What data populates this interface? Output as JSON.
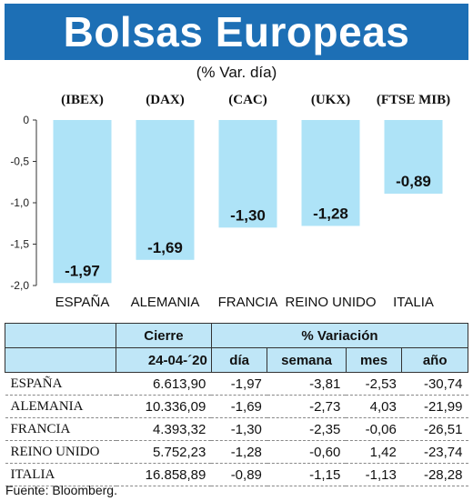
{
  "header": {
    "title": "Bolsas Europeas",
    "subtitle": "(% Var. día)"
  },
  "chart_data": {
    "type": "bar",
    "indices": [
      "(IBEX)",
      "(DAX)",
      "(CAC)",
      "(UKX)",
      "(FTSE MIB)"
    ],
    "categories": [
      "ESPAÑA",
      "ALEMANIA",
      "FRANCIA",
      "REINO UNIDO",
      "ITALIA"
    ],
    "values": [
      -1.97,
      -1.69,
      -1.3,
      -1.28,
      -0.89
    ],
    "value_labels": [
      "-1,97",
      "-1,69",
      "-1,30",
      "-1,28",
      "-0,89"
    ],
    "y_ticks": [
      "0",
      "-0,5",
      "-1,0",
      "-1,5",
      "-2,0"
    ],
    "ylim": [
      -2.0,
      0
    ],
    "bar_color": "#aee3f7"
  },
  "table": {
    "col_groups": [
      "Cierre",
      "% Variación"
    ],
    "date": "24-04-´20",
    "columns": [
      "día",
      "semana",
      "mes",
      "año"
    ],
    "rows": [
      {
        "name": "ESPAÑA",
        "cierre": "6.613,90",
        "dia": "-1,97",
        "semana": "-3,81",
        "mes": "-2,53",
        "ano": "-30,74"
      },
      {
        "name": "ALEMANIA",
        "cierre": "10.336,09",
        "dia": "-1,69",
        "semana": "-2,73",
        "mes": "4,03",
        "ano": "-21,99"
      },
      {
        "name": "FRANCIA",
        "cierre": "4.393,32",
        "dia": "-1,30",
        "semana": "-2,35",
        "mes": "-0,06",
        "ano": "-26,51"
      },
      {
        "name": "REINO UNIDO",
        "cierre": "5.752,23",
        "dia": "-1,28",
        "semana": "-0,60",
        "mes": "1,42",
        "ano": "-23,74"
      },
      {
        "name": "ITALIA",
        "cierre": "16.858,89",
        "dia": "-0,89",
        "semana": "-1,15",
        "mes": "-1,13",
        "ano": "-28,28"
      }
    ]
  },
  "footer": {
    "source": "Fuente: Bloomberg."
  }
}
